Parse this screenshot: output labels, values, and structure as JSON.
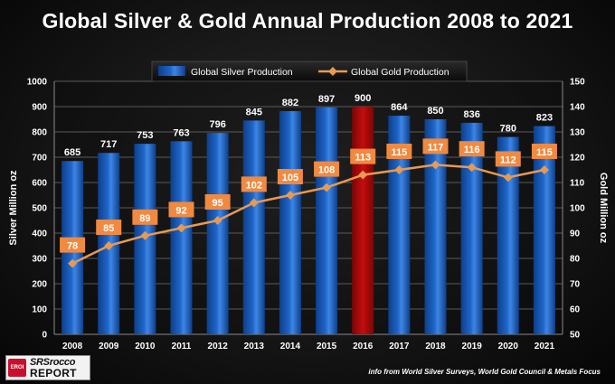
{
  "chart_data": {
    "type": "bar",
    "title": "Global Silver & Gold Annual Production 2008 to 2021",
    "categories": [
      "2008",
      "2009",
      "2010",
      "2011",
      "2012",
      "2013",
      "2014",
      "2015",
      "2016",
      "2017",
      "2018",
      "2019",
      "2020",
      "2021"
    ],
    "series": [
      {
        "name": "Global Silver Production",
        "type": "bar",
        "axis": "left",
        "values": [
          685,
          717,
          753,
          763,
          796,
          845,
          882,
          897,
          900,
          864,
          850,
          836,
          780,
          823
        ],
        "highlight_category": "2016"
      },
      {
        "name": "Global Gold Production",
        "type": "line",
        "axis": "right",
        "values": [
          78,
          85,
          89,
          92,
          95,
          102,
          105,
          108,
          113,
          115,
          117,
          116,
          112,
          115
        ]
      }
    ],
    "ylabel": "Silver  Million  oz",
    "ylim": [
      0,
      1000
    ],
    "yticks": [
      0,
      100,
      200,
      300,
      400,
      500,
      600,
      700,
      800,
      900,
      1000
    ],
    "y2label": "Gold  Million  oz",
    "y2lim": [
      50,
      150
    ],
    "y2ticks": [
      50,
      60,
      70,
      80,
      90,
      100,
      110,
      120,
      130,
      140,
      150
    ],
    "legend_position": "top-center"
  },
  "colors": {
    "silver_bar": "#1f66c8",
    "silver_bar_highlight": "#c40d0d",
    "gold_line": "#e89a52",
    "gold_label_bg": "#f08a40"
  },
  "logo": {
    "mark": "EROI",
    "line1": "SRSrocco",
    "line2": "REPORT"
  },
  "source_note": "info from World Silver Surveys, World Gold Council & Metals Focus"
}
